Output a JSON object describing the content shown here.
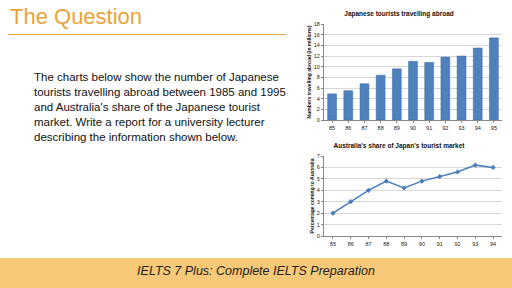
{
  "header": {
    "title": "The Question"
  },
  "body": {
    "text": "The charts below show the number of Japanese tourists travelling abroad between 1985 and 1995 and Australia's share of the Japanese tourist market. Write a report for a university lecturer describing the information shown below."
  },
  "footer": {
    "text": "IELTS 7 Plus: Complete IELTS Preparation"
  },
  "chart_data": [
    {
      "type": "bar",
      "title": "Japanese tourists travelling abroad",
      "y_label": "Numbers travelling abroad (in millions)",
      "categories": [
        "85",
        "86",
        "87",
        "88",
        "89",
        "90",
        "91",
        "92",
        "93",
        "94",
        "95"
      ],
      "values": [
        4.9,
        5.5,
        6.8,
        8.4,
        9.6,
        11.0,
        10.8,
        11.8,
        12.0,
        13.5,
        15.4
      ],
      "color": "#4f81bd",
      "ylim": [
        0,
        18
      ],
      "yticks": [
        0,
        2,
        4,
        6,
        8,
        10,
        12,
        14,
        16,
        18
      ],
      "grid": true
    },
    {
      "type": "line",
      "title": "Australia's share of Japan's tourist market",
      "y_label": "Percentage coming to Australia",
      "categories": [
        "85",
        "86",
        "87",
        "88",
        "89",
        "90",
        "91",
        "92",
        "93",
        "94"
      ],
      "values": [
        2.0,
        3.0,
        4.0,
        4.8,
        4.2,
        4.8,
        5.2,
        5.6,
        6.2,
        6.0
      ],
      "color": "#4a7ebb",
      "marker": "diamond",
      "ylim": [
        0,
        7
      ],
      "yticks": [
        0,
        1,
        2,
        3,
        4,
        5,
        6,
        7
      ],
      "grid": true
    }
  ]
}
